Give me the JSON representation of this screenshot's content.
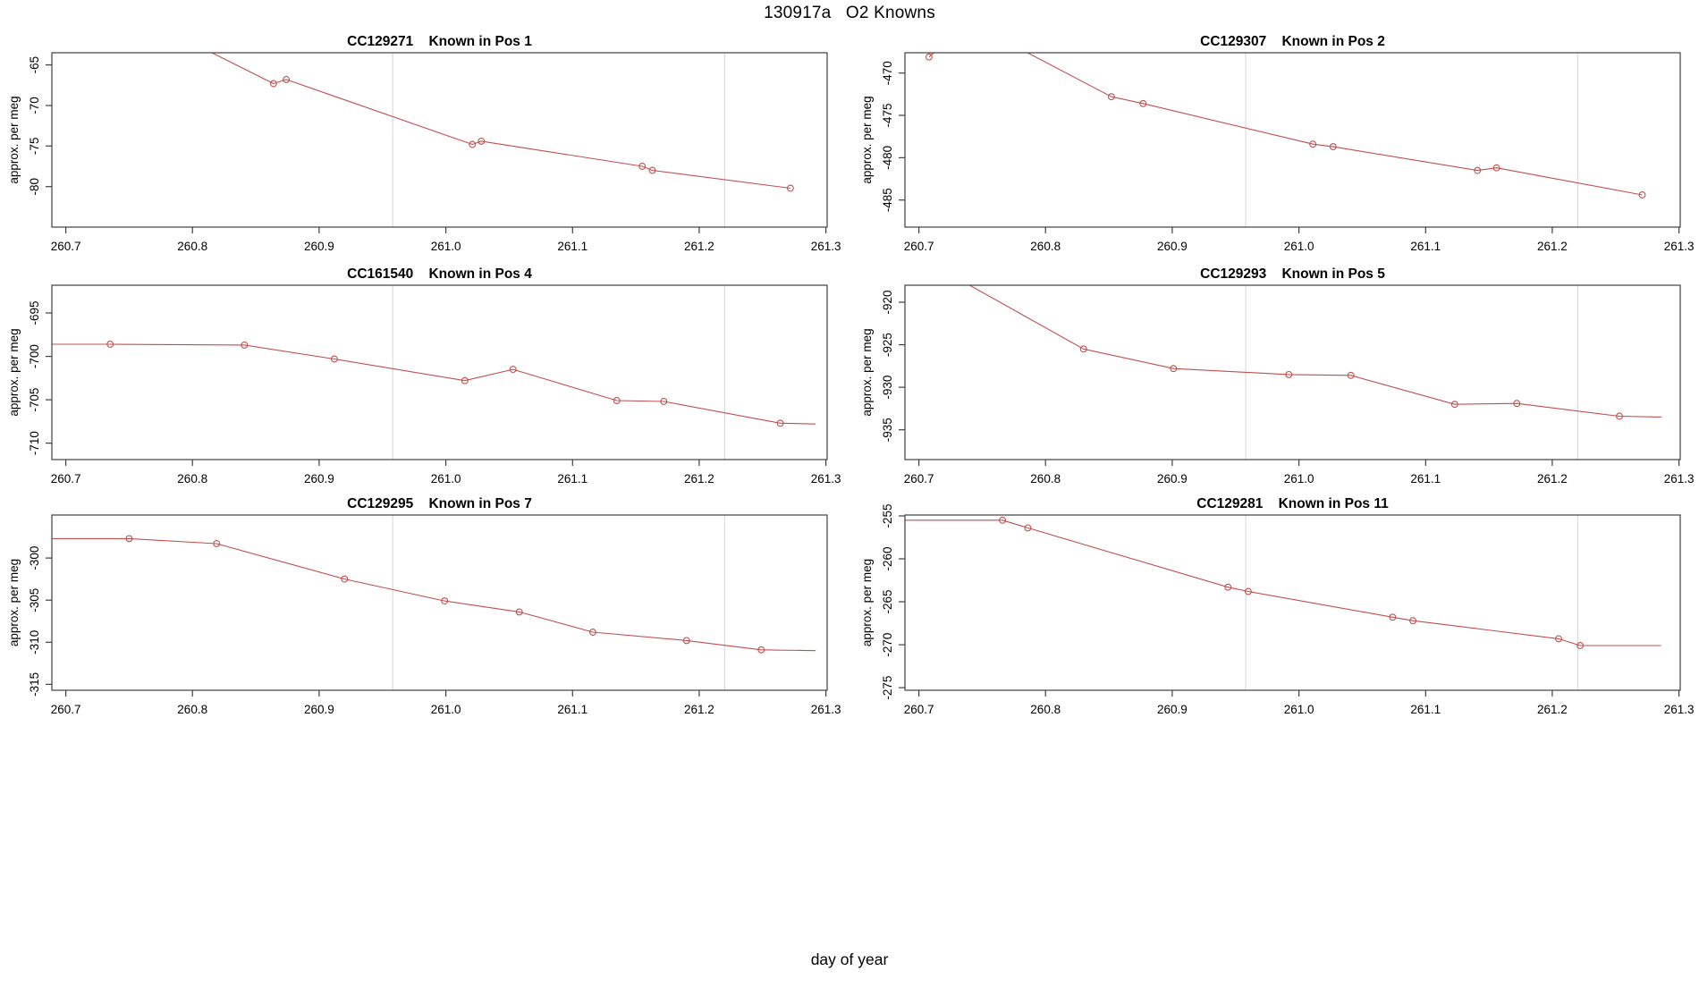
{
  "title": "130917a   O2 Knowns",
  "xlabel": "day of year",
  "chart_data": {
    "type": "line",
    "title": "130917a   O2 Knowns",
    "xlabel": "day of year",
    "ylabel": "approx. per meg",
    "layout_hint": {
      "grid_rows": 3,
      "grid_cols": 2,
      "grid": "vertical-gridlines-only",
      "legend": "none",
      "marker": "open-circle"
    },
    "x_axis": {
      "lim": [
        260.689,
        261.301
      ],
      "tick_values": [
        260.7,
        260.8,
        260.9,
        261.0,
        261.1,
        261.2,
        261.3
      ],
      "tick_labels": [
        "260.7",
        "260.8",
        "260.9",
        "261.0",
        "261.1",
        "261.2",
        "261.3"
      ]
    },
    "grid_x_values": [
      260.958,
      261.22
    ],
    "points_format": "each point is [x, y, marker] where marker 1 = open-circle drawn, 0 = line vertex only (clipped off-scale or edge stub)",
    "panels": [
      {
        "sample_id": "CC129271",
        "position_label": "Known in Pos 1",
        "title": "CC129271    Known in Pos 1",
        "ylim": [
          -85.0,
          -63.5
        ],
        "ytick_values": [
          -65,
          -70,
          -75,
          -80
        ],
        "ytick_labels": [
          "-65",
          "-70",
          "-75",
          "-80"
        ],
        "points": [
          [
            260.75,
            -58.4,
            0
          ],
          [
            260.864,
            -67.3,
            1
          ],
          [
            260.874,
            -66.8,
            1
          ],
          [
            261.021,
            -74.8,
            1
          ],
          [
            261.028,
            -74.4,
            1
          ],
          [
            261.155,
            -77.5,
            1
          ],
          [
            261.163,
            -78.0,
            1
          ],
          [
            261.272,
            -80.2,
            1
          ]
        ]
      },
      {
        "sample_id": "CC129307",
        "position_label": "Known in Pos 2",
        "title": "CC129307    Known in Pos 2",
        "ylim": [
          -488.2,
          -467.6
        ],
        "ytick_values": [
          -470,
          -475,
          -480,
          -485
        ],
        "ytick_labels": [
          "-470",
          "-475",
          "-480",
          "-485"
        ],
        "points": [
          [
            260.708,
            -468.1,
            1
          ],
          [
            260.74,
            -464.0,
            0
          ],
          [
            260.852,
            -472.8,
            1
          ],
          [
            260.877,
            -473.6,
            1
          ],
          [
            261.011,
            -478.4,
            1
          ],
          [
            261.027,
            -478.7,
            1
          ],
          [
            261.141,
            -481.5,
            1
          ],
          [
            261.156,
            -481.2,
            1
          ],
          [
            261.271,
            -484.4,
            1
          ]
        ]
      },
      {
        "sample_id": "CC161540",
        "position_label": "Known in Pos 4",
        "title": "CC161540    Known in Pos 4",
        "ylim": [
          -711.9,
          -691.8
        ],
        "ytick_values": [
          -695,
          -700,
          -705,
          -710
        ],
        "ytick_labels": [
          "-695",
          "-700",
          "-705",
          "-710"
        ],
        "points": [
          [
            260.689,
            -698.6,
            0
          ],
          [
            260.735,
            -698.6,
            1
          ],
          [
            260.841,
            -698.7,
            1
          ],
          [
            260.912,
            -700.3,
            1
          ],
          [
            261.015,
            -702.8,
            1
          ],
          [
            261.053,
            -701.5,
            1
          ],
          [
            261.135,
            -705.1,
            1
          ],
          [
            261.172,
            -705.2,
            1
          ],
          [
            261.264,
            -707.7,
            1
          ],
          [
            261.292,
            -707.8,
            0
          ]
        ]
      },
      {
        "sample_id": "CC129293",
        "position_label": "Known in Pos 5",
        "title": "CC129293    Known in Pos 5",
        "ylim": [
          -938.5,
          -918.0
        ],
        "ytick_values": [
          -920,
          -925,
          -930,
          -935
        ],
        "ytick_labels": [
          "-920",
          "-925",
          "-930",
          "-935"
        ],
        "points": [
          [
            260.71,
            -915.5,
            0
          ],
          [
            260.83,
            -925.5,
            1
          ],
          [
            260.901,
            -927.8,
            1
          ],
          [
            260.992,
            -928.5,
            1
          ],
          [
            261.041,
            -928.6,
            1
          ],
          [
            261.123,
            -932.0,
            1
          ],
          [
            261.172,
            -931.9,
            1
          ],
          [
            261.253,
            -933.4,
            1
          ],
          [
            261.286,
            -933.5,
            0
          ]
        ]
      },
      {
        "sample_id": "CC129295",
        "position_label": "Known in Pos 7",
        "title": "CC129295    Known in Pos 7",
        "ylim": [
          -315.7,
          -294.9
        ],
        "ytick_values": [
          -300,
          -305,
          -310,
          -315
        ],
        "ytick_labels": [
          "-300",
          "-305",
          "-310",
          "-315"
        ],
        "points": [
          [
            260.689,
            -297.7,
            0
          ],
          [
            260.75,
            -297.7,
            1
          ],
          [
            260.819,
            -298.3,
            1
          ],
          [
            260.92,
            -302.5,
            1
          ],
          [
            260.999,
            -305.1,
            1
          ],
          [
            261.058,
            -306.4,
            1
          ],
          [
            261.116,
            -308.8,
            1
          ],
          [
            261.19,
            -309.8,
            1
          ],
          [
            261.249,
            -310.9,
            1
          ],
          [
            261.292,
            -311.0,
            0
          ]
        ]
      },
      {
        "sample_id": "CC129281",
        "position_label": "Known in Pos 11",
        "title": "CC129281    Known in Pos 11",
        "ylim": [
          -275.3,
          -254.9
        ],
        "ytick_values": [
          -255,
          -260,
          -265,
          -270,
          -275
        ],
        "ytick_labels": [
          "-255",
          "-260",
          "-265",
          "-270",
          "-275"
        ],
        "points": [
          [
            260.689,
            -255.5,
            0
          ],
          [
            260.766,
            -255.5,
            1
          ],
          [
            260.786,
            -256.4,
            1
          ],
          [
            260.944,
            -263.3,
            1
          ],
          [
            260.96,
            -263.8,
            1
          ],
          [
            261.074,
            -266.8,
            1
          ],
          [
            261.09,
            -267.2,
            1
          ],
          [
            261.205,
            -269.3,
            1
          ],
          [
            261.222,
            -270.1,
            1
          ],
          [
            261.286,
            -270.1,
            0
          ]
        ]
      }
    ],
    "style": {
      "line_color": "#bf4f4f",
      "grid_color": "#d9d9d9",
      "axis_color": "#3f3f3f",
      "text_color": "#000000",
      "background": "#ffffff"
    }
  }
}
